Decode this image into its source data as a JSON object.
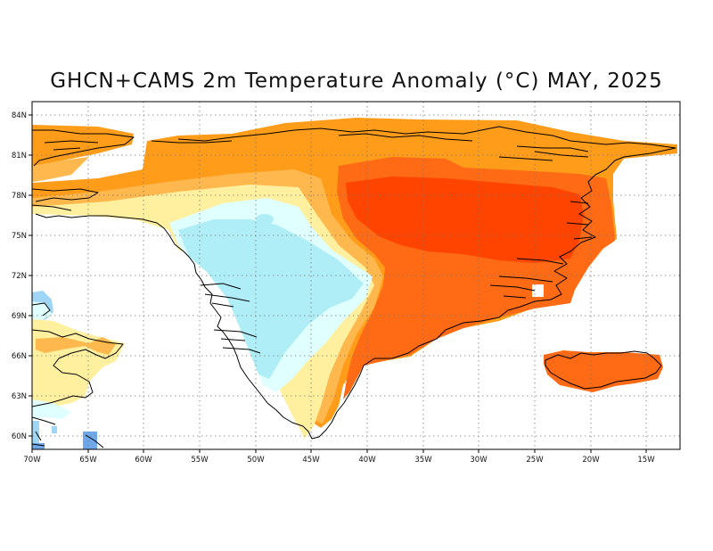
{
  "map": {
    "title": "GHCN+CAMS 2m Temperature Anomaly (°C) MAY, 2025",
    "x_ticks": [
      "70W",
      "65W",
      "60W",
      "55W",
      "50W",
      "45W",
      "40W",
      "35W",
      "30W",
      "25W",
      "20W",
      "15W"
    ],
    "y_ticks": [
      "84N",
      "81N",
      "78N",
      "75N",
      "72N",
      "69N",
      "66N",
      "63N",
      "60N"
    ],
    "grid": true,
    "colors": {
      "deep_red": "#ff4400",
      "orange_red": "#ff6a14",
      "orange": "#ff9c1a",
      "light_orange": "#ffb84d",
      "pale_yellow": "#fff0a0",
      "light_cyan": "#e0ffff",
      "cyan": "#b0eef7",
      "light_blue": "#9fd6f5",
      "blue": "#6ea8e8",
      "coastline": "#000000"
    }
  }
}
